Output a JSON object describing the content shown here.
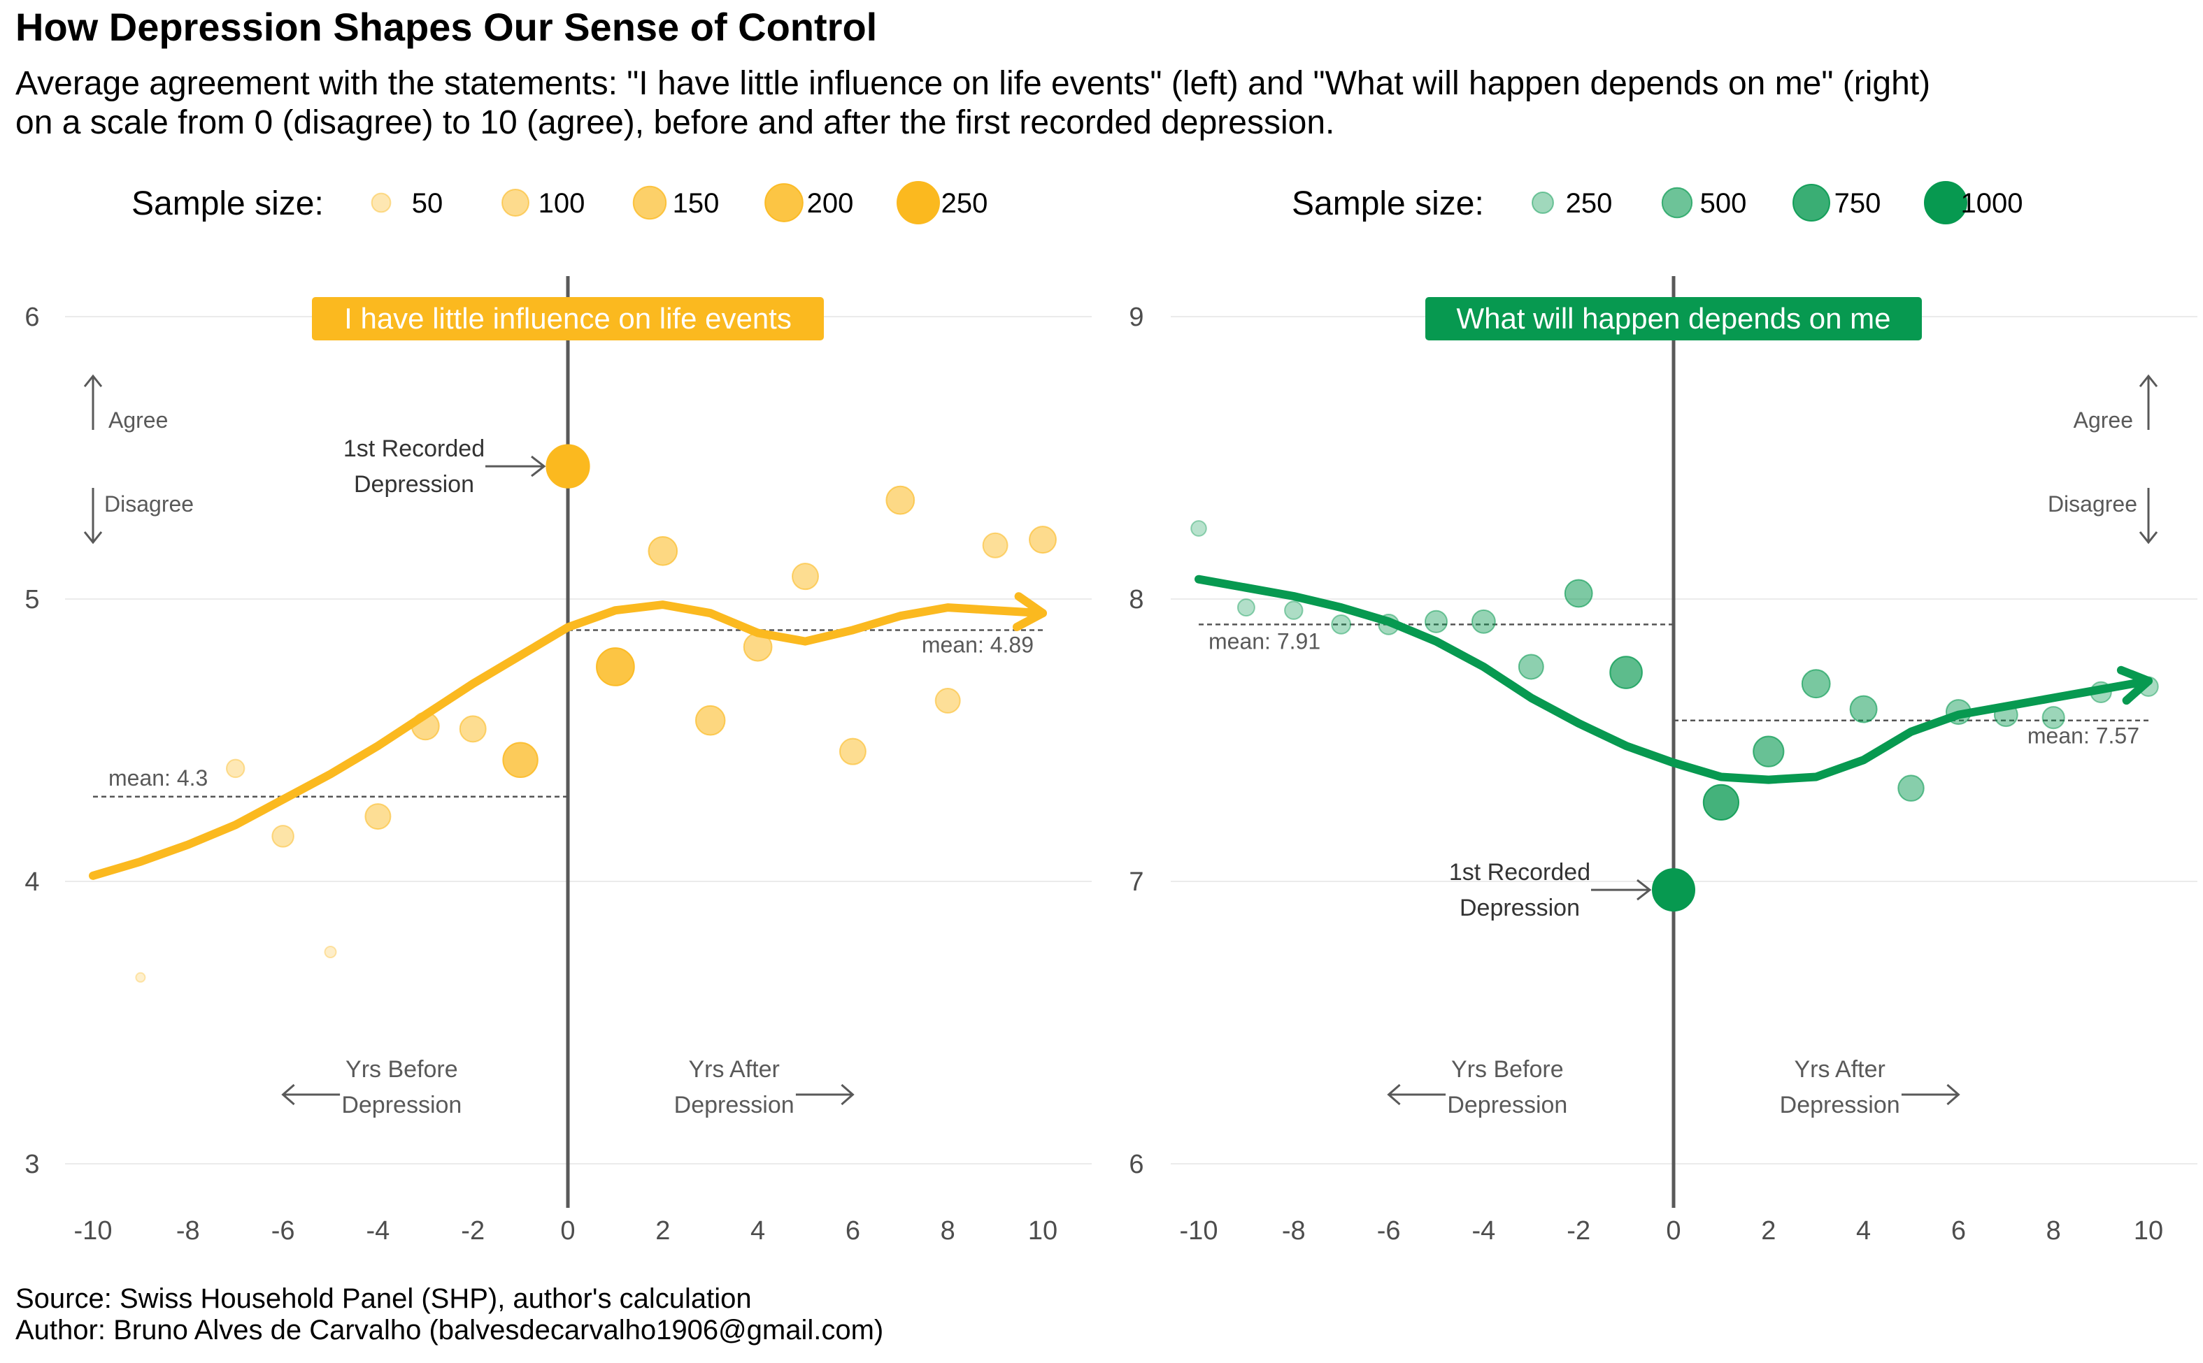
{
  "title": "How Depression Shapes Our Sense of Control",
  "subtitle": {
    "line1": "Average agreement with the statements: \"I have little influence on life events\" (left) and \"What will happen depends on me\" (right)",
    "line2": "on a scale from 0 (disagree) to 10 (agree), before and after the first recorded depression."
  },
  "caption": {
    "line1": "Source: Swiss Household Panel (SHP), author's calculation",
    "line2": "Author: Bruno Alves de Carvalho (balvesdecarvalho1906@gmail.com)"
  },
  "chart_data": [
    {
      "type": "scatter",
      "id": "left",
      "panel_label": "I have little influence on life events",
      "color": "#FBB91F",
      "legend_title": "Sample size:",
      "legend_sizes": [
        50,
        100,
        150,
        200,
        250
      ],
      "legend_labels": [
        "50",
        "100",
        "150",
        "200",
        "250"
      ],
      "xlim": [
        -10,
        10
      ],
      "ylim": [
        3,
        6
      ],
      "x_ticks": [
        -10,
        -8,
        -6,
        -4,
        -2,
        0,
        2,
        4,
        6,
        8,
        10
      ],
      "x_tick_labels": [
        "-10",
        "-8",
        "-6",
        "-4",
        "-2",
        "0",
        "2",
        "4",
        "6",
        "8",
        "10"
      ],
      "y_ticks": [
        3,
        4,
        5,
        6
      ],
      "y_tick_labels": [
        "3",
        "4",
        "5",
        "6"
      ],
      "points": [
        {
          "x": -9,
          "y": 3.66,
          "n": 12
        },
        {
          "x": -7,
          "y": 4.4,
          "n": 45
        },
        {
          "x": -6,
          "y": 4.16,
          "n": 65
        },
        {
          "x": -5,
          "y": 3.75,
          "n": 18
        },
        {
          "x": -4,
          "y": 4.23,
          "n": 90
        },
        {
          "x": -3,
          "y": 4.55,
          "n": 105
        },
        {
          "x": -2,
          "y": 4.54,
          "n": 95
        },
        {
          "x": -1,
          "y": 4.43,
          "n": 170
        },
        {
          "x": 0,
          "y": 5.47,
          "n": 260
        },
        {
          "x": 1,
          "y": 4.76,
          "n": 200
        },
        {
          "x": 2,
          "y": 5.17,
          "n": 115
        },
        {
          "x": 3,
          "y": 4.57,
          "n": 120
        },
        {
          "x": 4,
          "y": 4.83,
          "n": 110
        },
        {
          "x": 5,
          "y": 5.08,
          "n": 95
        },
        {
          "x": 6,
          "y": 4.46,
          "n": 95
        },
        {
          "x": 7,
          "y": 5.35,
          "n": 110
        },
        {
          "x": 8,
          "y": 4.64,
          "n": 85
        },
        {
          "x": 9,
          "y": 5.19,
          "n": 85
        },
        {
          "x": 10,
          "y": 5.21,
          "n": 100
        }
      ],
      "trend": {
        "x": [
          -10,
          -9,
          -8,
          -7,
          -6,
          -5,
          -4,
          -3,
          -2,
          -1,
          0,
          1,
          2,
          3,
          4,
          5,
          6,
          7,
          8,
          9,
          10
        ],
        "y": [
          4.02,
          4.07,
          4.13,
          4.2,
          4.29,
          4.38,
          4.48,
          4.59,
          4.7,
          4.8,
          4.9,
          4.96,
          4.98,
          4.95,
          4.88,
          4.85,
          4.89,
          4.94,
          4.97,
          4.96,
          4.95
        ]
      },
      "mean_before": {
        "value": 4.3,
        "label": "mean: 4.3"
      },
      "mean_after": {
        "value": 4.89,
        "label": "mean: 4.89"
      },
      "annotation": {
        "line1": "1st Recorded",
        "line2": "Depression"
      },
      "agree_label": "Agree",
      "disagree_label": "Disagree",
      "before_label": {
        "line1": "Yrs Before",
        "line2": "Depression"
      },
      "after_label": {
        "line1": "Yrs After",
        "line2": "Depression"
      }
    },
    {
      "type": "scatter",
      "id": "right",
      "panel_label": "What will happen depends on me",
      "color": "#079950",
      "legend_title": "Sample size:",
      "legend_sizes": [
        250,
        500,
        750,
        1000
      ],
      "legend_labels": [
        "250",
        "500",
        "750",
        "1000"
      ],
      "xlim": [
        -10,
        10
      ],
      "ylim": [
        6,
        9
      ],
      "x_ticks": [
        -10,
        -8,
        -6,
        -4,
        -2,
        0,
        2,
        4,
        6,
        8,
        10
      ],
      "x_tick_labels": [
        "-10",
        "-8",
        "-6",
        "-4",
        "-2",
        "0",
        "2",
        "4",
        "6",
        "8",
        "10"
      ],
      "y_ticks": [
        6,
        7,
        8,
        9
      ],
      "y_tick_labels": [
        "6",
        "7",
        "8",
        "9"
      ],
      "points": [
        {
          "x": -10,
          "y": 8.25,
          "n": 130
        },
        {
          "x": -9,
          "y": 7.97,
          "n": 160
        },
        {
          "x": -8,
          "y": 7.96,
          "n": 180
        },
        {
          "x": -7,
          "y": 7.91,
          "n": 200
        },
        {
          "x": -6,
          "y": 7.91,
          "n": 230
        },
        {
          "x": -5,
          "y": 7.92,
          "n": 270
        },
        {
          "x": -4,
          "y": 7.92,
          "n": 300
        },
        {
          "x": -3,
          "y": 7.76,
          "n": 340
        },
        {
          "x": -2,
          "y": 8.02,
          "n": 420
        },
        {
          "x": -1,
          "y": 7.74,
          "n": 580
        },
        {
          "x": 0,
          "y": 6.97,
          "n": 1000
        },
        {
          "x": 1,
          "y": 7.28,
          "n": 700
        },
        {
          "x": 2,
          "y": 7.46,
          "n": 520
        },
        {
          "x": 3,
          "y": 7.7,
          "n": 440
        },
        {
          "x": 4,
          "y": 7.61,
          "n": 400
        },
        {
          "x": 5,
          "y": 7.33,
          "n": 370
        },
        {
          "x": 6,
          "y": 7.6,
          "n": 340
        },
        {
          "x": 7,
          "y": 7.59,
          "n": 300
        },
        {
          "x": 8,
          "y": 7.58,
          "n": 270
        },
        {
          "x": 9,
          "y": 7.67,
          "n": 240
        },
        {
          "x": 10,
          "y": 7.69,
          "n": 210
        }
      ],
      "trend": {
        "x": [
          -10,
          -9,
          -8,
          -7,
          -6,
          -5,
          -4,
          -3,
          -2,
          -1,
          0,
          1,
          2,
          3,
          4,
          5,
          6,
          7,
          8,
          9,
          10
        ],
        "y": [
          8.07,
          8.04,
          8.01,
          7.97,
          7.92,
          7.85,
          7.76,
          7.65,
          7.56,
          7.48,
          7.42,
          7.37,
          7.36,
          7.37,
          7.43,
          7.53,
          7.59,
          7.62,
          7.65,
          7.68,
          7.71
        ]
      },
      "mean_before": {
        "value": 7.91,
        "label": "mean: 7.91"
      },
      "mean_after": {
        "value": 7.57,
        "label": "mean: 7.57"
      },
      "annotation": {
        "line1": "1st Recorded",
        "line2": "Depression"
      },
      "agree_label": "Agree",
      "disagree_label": "Disagree",
      "before_label": {
        "line1": "Yrs Before",
        "line2": "Depression"
      },
      "after_label": {
        "line1": "Yrs After",
        "line2": "Depression"
      }
    }
  ]
}
